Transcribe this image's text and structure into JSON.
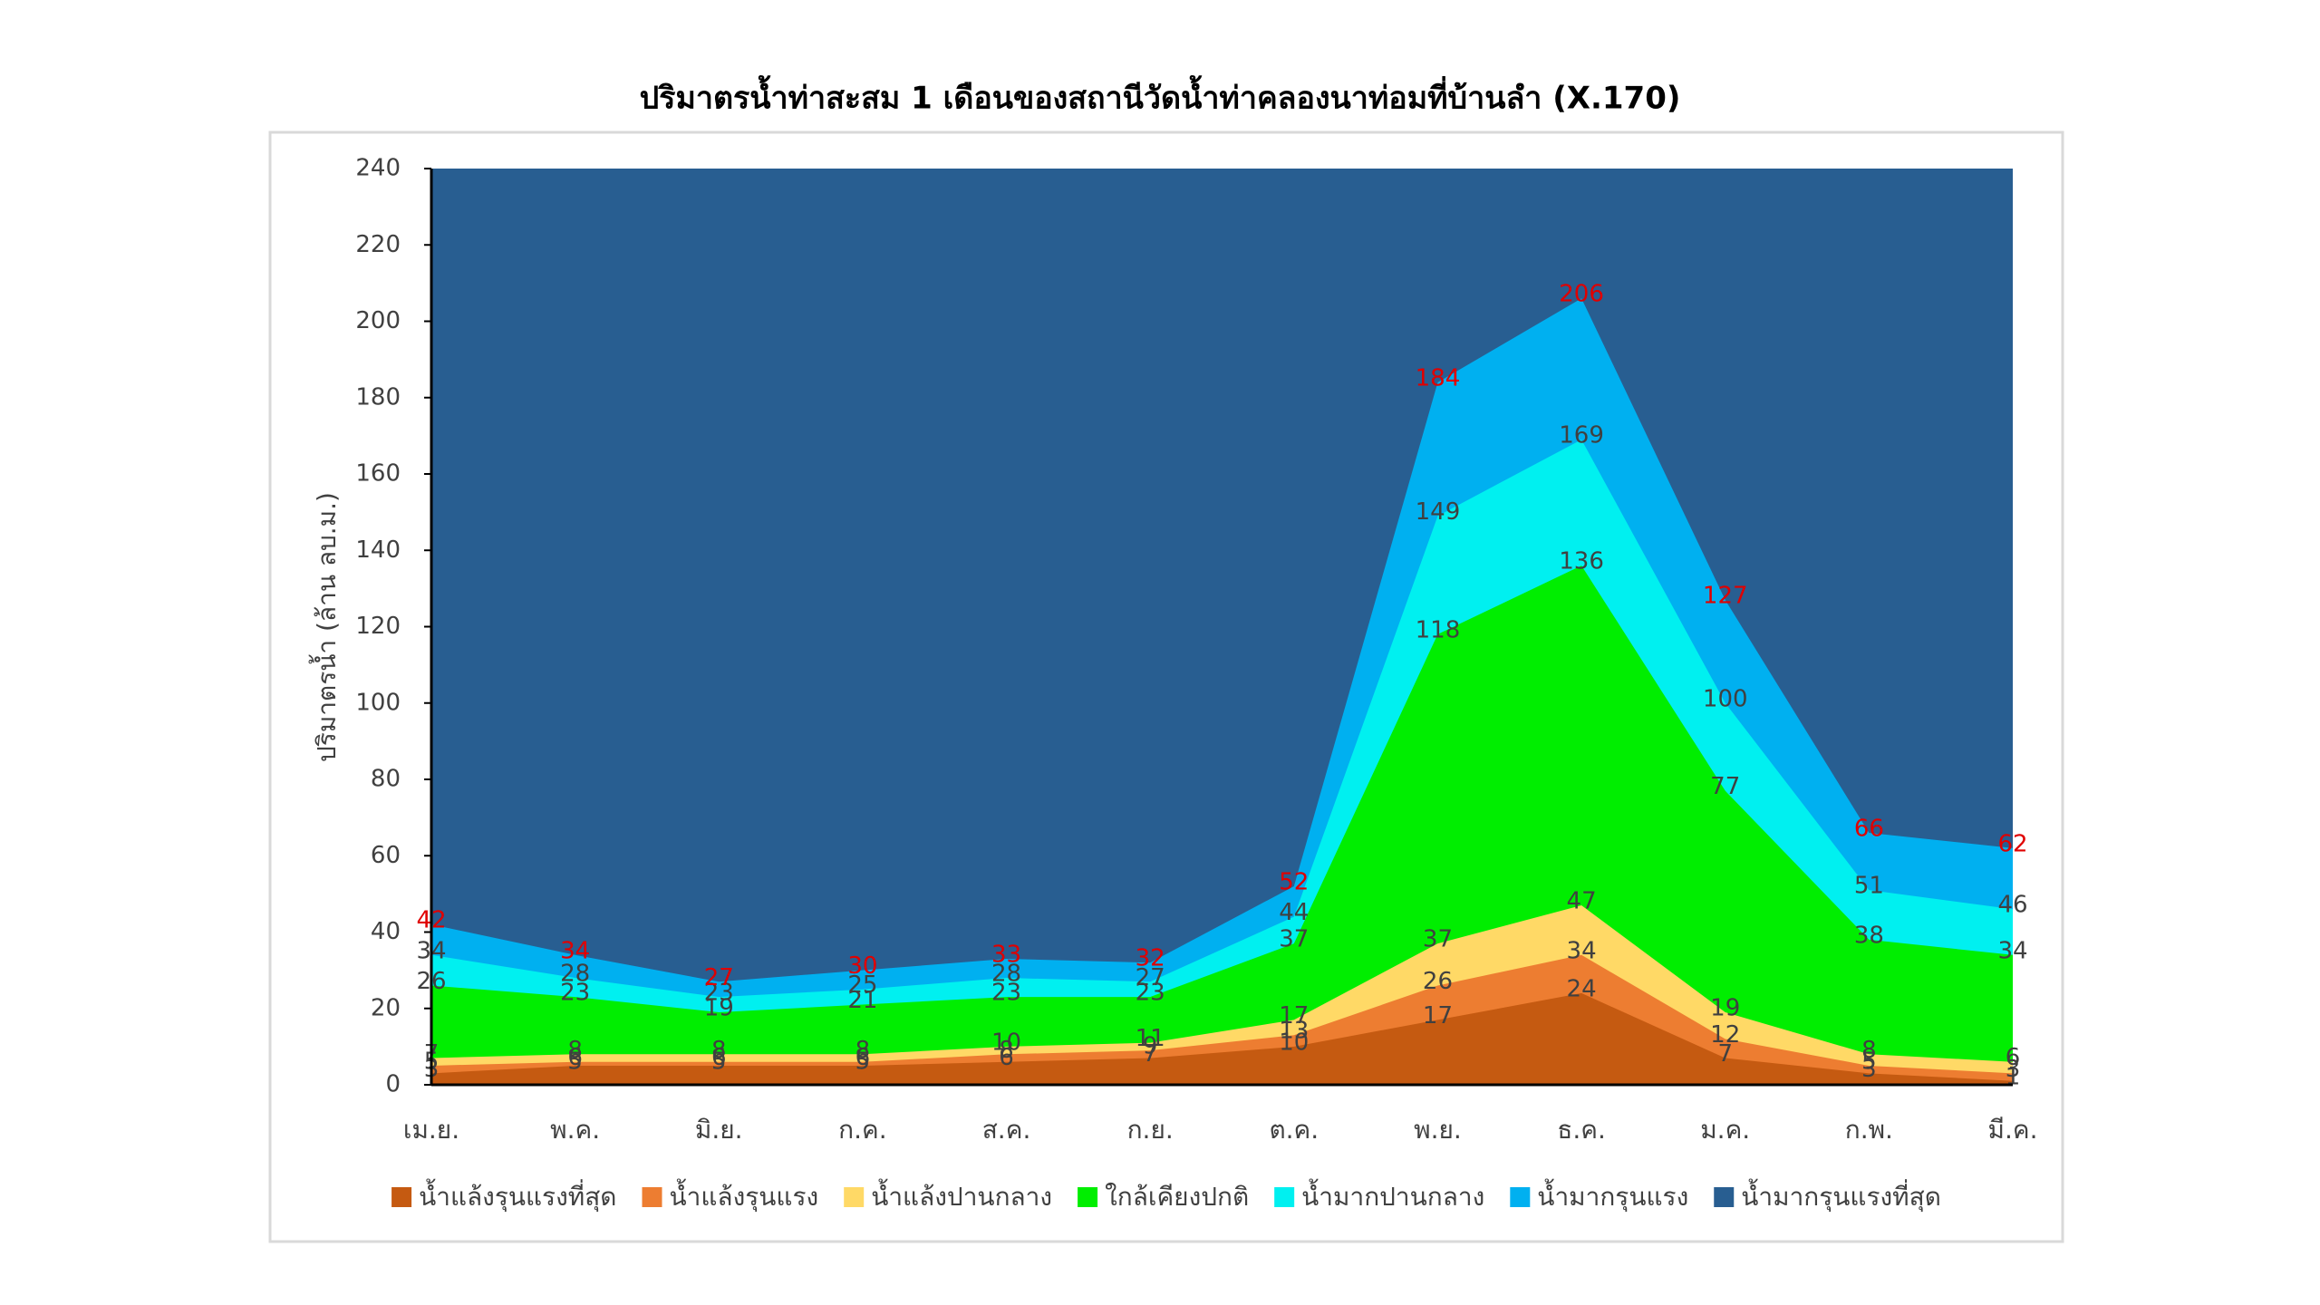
{
  "chart_data": {
    "type": "area",
    "title": "ปริมาตรน้ำท่าสะสม 1 เดือนของสถานีวัดน้ำท่าคลองนาท่อมที่บ้านลำ (X.170)",
    "y_label": "ปริมาตรน้ำ (ล้าน ลบ.ม.)",
    "categories": [
      "เม.ย.",
      "พ.ค.",
      "มิ.ย.",
      "ก.ค.",
      "ส.ค.",
      "ก.ย.",
      "ต.ค.",
      "พ.ย.",
      "ธ.ค.",
      "ม.ค.",
      "ก.พ.",
      "มี.ค."
    ],
    "series": [
      {
        "name": "น้ำแล้งรุนแรงที่สุด",
        "color": "#c55a11",
        "label_color": "#404040",
        "values": [
          3,
          5,
          5,
          5,
          6,
          7,
          10,
          17,
          24,
          7,
          3,
          1
        ]
      },
      {
        "name": "น้ำแล้งรุนแรง",
        "color": "#ed7d31",
        "label_color": "#404040",
        "values": [
          5,
          6,
          6,
          6,
          8,
          9,
          13,
          26,
          34,
          12,
          5,
          3
        ]
      },
      {
        "name": "น้ำแล้งปานกลาง",
        "color": "#ffd966",
        "label_color": "#404040",
        "values": [
          7,
          8,
          8,
          8,
          10,
          11,
          17,
          37,
          47,
          19,
          8,
          6
        ]
      },
      {
        "name": "ใกล้เคียงปกติ",
        "color": "#00ee00",
        "label_color": "#404040",
        "values": [
          26,
          23,
          19,
          21,
          23,
          23,
          37,
          118,
          136,
          77,
          38,
          34
        ]
      },
      {
        "name": "น้ำมากปานกลาง",
        "color": "#00f0f0",
        "label_color": "#404040",
        "values": [
          34,
          28,
          23,
          25,
          28,
          27,
          44,
          149,
          169,
          100,
          51,
          46
        ]
      },
      {
        "name": "น้ำมากรุนแรง",
        "color": "#00b0f0",
        "label_color": "#e00000",
        "values": [
          42,
          34,
          27,
          30,
          33,
          32,
          52,
          184,
          206,
          127,
          66,
          62
        ]
      },
      {
        "name": "น้ำมากรุนแรงที่สุด",
        "color": "#285e91",
        "values": [
          240,
          240,
          240,
          240,
          240,
          240,
          240,
          240,
          240,
          240,
          240,
          240
        ]
      }
    ],
    "ylim": [
      0,
      240
    ],
    "yticks": [
      0,
      20,
      40,
      60,
      80,
      100,
      120,
      140,
      160,
      180,
      200,
      220,
      240
    ],
    "legend": "bottom"
  }
}
